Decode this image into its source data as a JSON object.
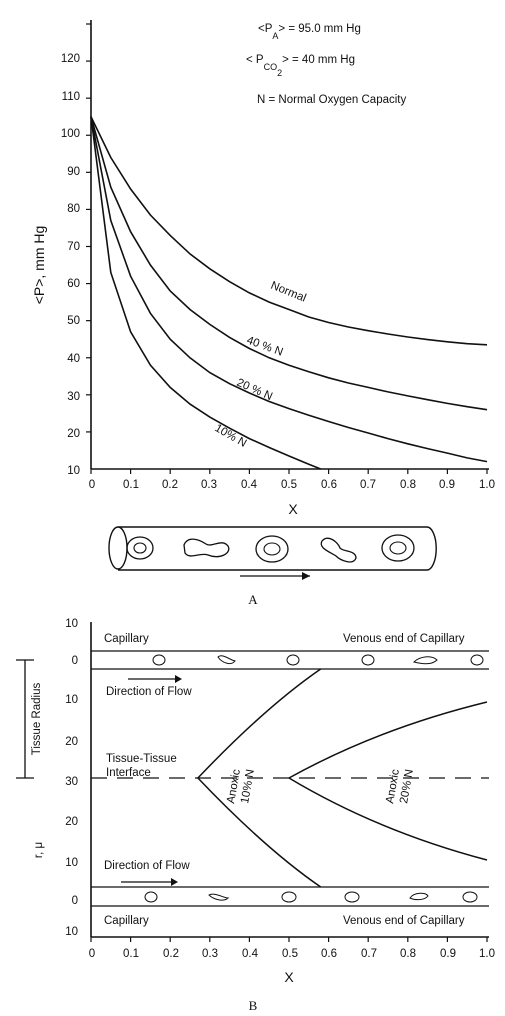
{
  "chart_data": [
    {
      "type": "line",
      "panel_label": "A",
      "xlabel": "X",
      "ylabel": "<P>, mm Hg",
      "xlim": [
        0,
        1.0
      ],
      "ylim": [
        0,
        120
      ],
      "xticks": [
        "0",
        "0.1",
        "0.2",
        "0.3",
        "0.4",
        "0.5",
        "0.6",
        "0.7",
        "0.8",
        "0.9",
        "1.0"
      ],
      "yticks": [
        "10",
        "20",
        "30",
        "40",
        "50",
        "60",
        "70",
        "80",
        "90",
        "100",
        "110",
        "120"
      ],
      "annotations": {
        "pa_line": "<P_A> = 95.0 mm Hg",
        "pa_lhs": "<P",
        "pa_sub": "A",
        "pa_rhs": "> = 95.0 mm Hg",
        "pco2_lhs": "< P",
        "pco2_sub": "CO",
        "pco2_sub2": "2",
        "pco2_rhs": "> = 40 mm Hg",
        "n_def": "N = Normal Oxygen Capacity"
      },
      "series": [
        {
          "name": "Normal",
          "x": [
            0,
            0.05,
            0.1,
            0.15,
            0.2,
            0.25,
            0.3,
            0.35,
            0.4,
            0.45,
            0.5,
            0.55,
            0.6,
            0.65,
            0.7,
            0.75,
            0.8,
            0.85,
            0.9,
            0.95,
            1.0
          ],
          "y": [
            95,
            84,
            75.5,
            68.5,
            63,
            58,
            54,
            50.5,
            47.5,
            45,
            43,
            41,
            39.5,
            38.3,
            37.3,
            36.4,
            35.6,
            34.9,
            34.3,
            33.8,
            33.5
          ]
        },
        {
          "name": "40 % N",
          "x": [
            0,
            0.05,
            0.1,
            0.15,
            0.2,
            0.25,
            0.3,
            0.35,
            0.4,
            0.45,
            0.5,
            0.55,
            0.6,
            0.65,
            0.7,
            0.75,
            0.8,
            0.85,
            0.9,
            0.95,
            1.0
          ],
          "y": [
            95,
            76,
            64,
            55,
            48,
            43,
            39,
            35.5,
            32.5,
            30,
            28,
            26.2,
            24.6,
            23.2,
            22,
            20.8,
            19.7,
            18.7,
            17.7,
            16.8,
            16
          ]
        },
        {
          "name": "20 % N",
          "x": [
            0,
            0.05,
            0.1,
            0.15,
            0.2,
            0.25,
            0.3,
            0.35,
            0.4,
            0.45,
            0.5,
            0.55,
            0.6,
            0.65,
            0.7,
            0.75,
            0.8,
            0.85,
            0.9,
            0.95,
            1.0
          ],
          "y": [
            95,
            67,
            52,
            42,
            35,
            30,
            26,
            23,
            20.5,
            18.2,
            16.3,
            14.5,
            12.8,
            11.2,
            9.7,
            8.2,
            6.8,
            5.5,
            4.3,
            3,
            2
          ]
        },
        {
          "name": "10% N",
          "x": [
            0,
            0.05,
            0.1,
            0.15,
            0.2,
            0.25,
            0.3,
            0.35,
            0.4,
            0.45,
            0.5,
            0.55,
            0.58
          ],
          "y": [
            95,
            53,
            37,
            28,
            22,
            17.5,
            14,
            11,
            8.2,
            5.8,
            3.5,
            1.3,
            0
          ]
        }
      ],
      "flow_arrow": "→"
    },
    {
      "type": "diagram",
      "panel_label": "B",
      "xlabel": "X",
      "ylabel": "r, μ",
      "side_label": "Tissue Radius",
      "xticks": [
        "0",
        "0.1",
        "0.2",
        "0.3",
        "0.4",
        "0.5",
        "0.6",
        "0.7",
        "0.8",
        "0.9",
        "1.0"
      ],
      "ylabels_left": [
        "10",
        "0",
        "10",
        "20",
        "30",
        "20",
        "10",
        "0",
        "10"
      ],
      "labels": {
        "capillary_top": "Capillary",
        "venous_top": "Venous end of Capillary",
        "flow_top": "Direction of Flow",
        "interface_1": "Tissue-Tissue",
        "interface_2": "Interface",
        "anoxic_10_1": "Anoxic",
        "anoxic_10_2": "10% N",
        "anoxic_20_1": "Anoxic",
        "anoxic_20_2": "20% N",
        "flow_bottom": "Direction of Flow",
        "capillary_bottom": "Capillary",
        "venous_bottom": "Venous end of Capillary"
      },
      "boundaries": [
        {
          "name": "10% N",
          "start_x": 0.27,
          "end_x": 0.58
        },
        {
          "name": "20% N",
          "start_x": 0.5,
          "end_x": 1.0
        }
      ]
    }
  ]
}
